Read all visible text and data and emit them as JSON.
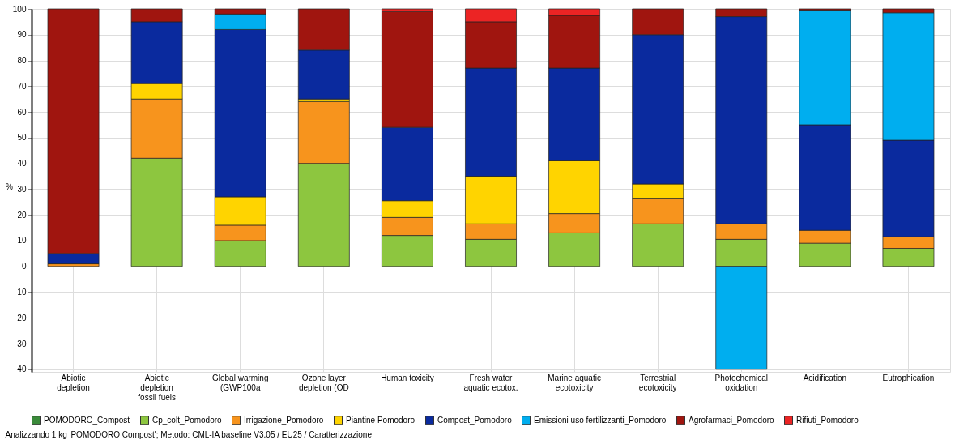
{
  "chart_data": {
    "type": "bar",
    "stacked": true,
    "ylabel": "%",
    "ylim": [
      -41,
      100
    ],
    "yticks": [
      -40,
      -30,
      -20,
      -10,
      0,
      10,
      20,
      30,
      40,
      50,
      60,
      70,
      80,
      90,
      100
    ],
    "grid": true,
    "legend": "bottom",
    "categories": [
      "Abiotic depletion",
      "Abiotic depletion fossil fuels",
      "Global warming (GWP100a",
      "Ozone layer depletion (OD",
      "Human toxicity",
      "Fresh water aquatic ecotox.",
      "Marine aquatic ecotoxicity",
      "Terrestrial ecotoxicity",
      "Photochemical oxidation",
      "Acidification",
      "Eutrophication"
    ],
    "series": [
      {
        "name": "POMODORO_Compost",
        "color": "#3a8a3a",
        "values": [
          null,
          null,
          null,
          null,
          null,
          null,
          null,
          null,
          null,
          null,
          null
        ]
      },
      {
        "name": "Cp_colt_Pomodoro",
        "color": "#8dc63f",
        "values": [
          0,
          42,
          10,
          40,
          12,
          10.5,
          13,
          16.5,
          10.5,
          9,
          7
        ]
      },
      {
        "name": "Irrigazione_Pomodoro",
        "color": "#f7941d",
        "values": [
          1,
          23,
          6,
          24,
          7,
          6,
          7.5,
          10,
          6,
          5,
          4.5
        ]
      },
      {
        "name": "Piantine Pomodoro",
        "color": "#ffd400",
        "values": [
          0,
          6,
          11,
          1,
          6.5,
          18.5,
          20.5,
          5.5,
          0,
          0,
          0
        ]
      },
      {
        "name": "Compost_Pomodoro",
        "color": "#0a2a9e",
        "values": [
          4,
          24,
          65,
          19,
          28.5,
          42,
          36,
          58,
          80.5,
          41,
          37.5
        ]
      },
      {
        "name": "Emissioni uso fertilizzanti_Pomodoro",
        "color": "#00aeef",
        "values": [
          0,
          0,
          6,
          0,
          0,
          0,
          0,
          0,
          -40,
          44.5,
          49.5
        ]
      },
      {
        "name": "Agrofarmaci_Pomodoro",
        "color": "#a0150f",
        "values": [
          95,
          5,
          2,
          16,
          45,
          18,
          20.5,
          10,
          3,
          0.5,
          1.5
        ]
      },
      {
        "name": "Rifiuti_Pomodoro",
        "color": "#ec2424",
        "values": [
          0,
          0,
          0,
          0,
          1,
          5,
          2.5,
          0,
          0,
          0,
          0
        ]
      }
    ],
    "annotations": [
      "Analizzando 1 kg 'POMODORO Compost'; Metodo: CML-IA baseline V3.05 / EU25 / Caratterizzazione"
    ]
  }
}
